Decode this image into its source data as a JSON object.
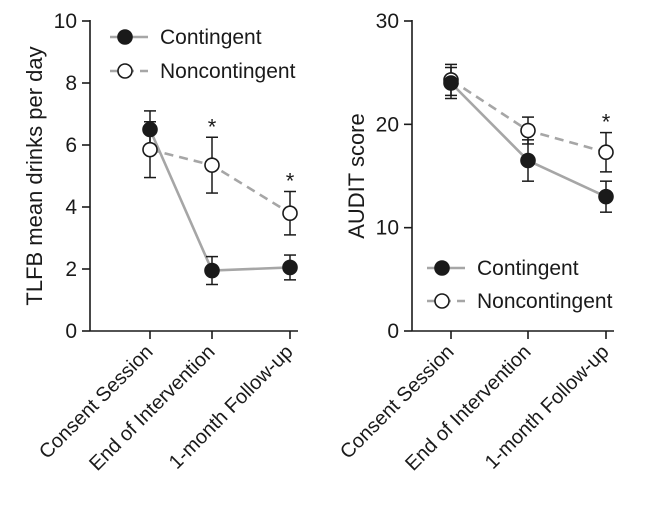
{
  "chart_data": [
    {
      "type": "line",
      "ylabel": "TLFB mean drinks per day",
      "ylim": [
        0,
        10
      ],
      "yticks": [
        0,
        2,
        4,
        6,
        8,
        10
      ],
      "categories": [
        "Consent Session",
        "End of Intervention",
        "1-month Follow-up"
      ],
      "legend_position": "top-left",
      "series": [
        {
          "name": "Contingent",
          "values": [
            6.5,
            1.95,
            2.05
          ],
          "errors": [
            0.6,
            0.45,
            0.4
          ],
          "marker": "filled-circle",
          "line": "solid",
          "color": "#a6a6a6"
        },
        {
          "name": "Noncontingent",
          "values": [
            5.85,
            5.35,
            3.8
          ],
          "errors": [
            0.9,
            0.9,
            0.7
          ],
          "marker": "open-circle",
          "line": "dashed",
          "color": "#a6a6a6"
        }
      ],
      "annotations": [
        {
          "category": "End of Intervention",
          "text": "*"
        },
        {
          "category": "1-month Follow-up",
          "text": "*"
        }
      ]
    },
    {
      "type": "line",
      "ylabel": "AUDIT score",
      "ylim": [
        0,
        30
      ],
      "yticks": [
        0,
        10,
        20,
        30
      ],
      "categories": [
        "Consent Session",
        "End of Intervention",
        "1-month Follow-up"
      ],
      "legend_position": "bottom-left",
      "series": [
        {
          "name": "Contingent",
          "values": [
            24.0,
            16.5,
            13.0
          ],
          "errors": [
            1.5,
            2.0,
            1.5
          ],
          "marker": "filled-circle",
          "line": "solid",
          "color": "#a6a6a6"
        },
        {
          "name": "Noncontingent",
          "values": [
            24.3,
            19.4,
            17.3
          ],
          "errors": [
            1.5,
            1.3,
            1.9
          ],
          "marker": "open-circle",
          "line": "dashed",
          "color": "#a6a6a6"
        }
      ],
      "annotations": [
        {
          "category": "1-month Follow-up",
          "text": "*"
        }
      ]
    }
  ]
}
